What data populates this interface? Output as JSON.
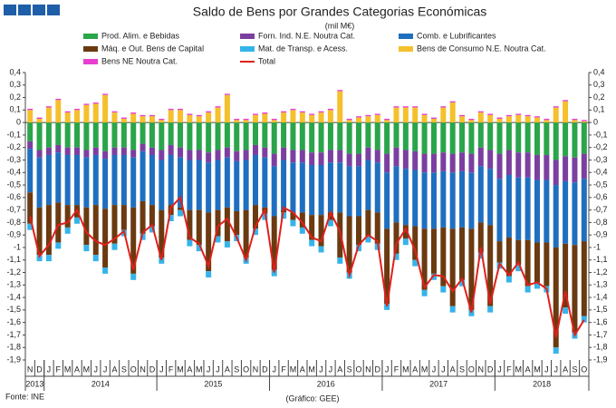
{
  "chart_data": {
    "type": "stacked-bar",
    "title": "Saldo de Bens por Grandes Categorias Económicas",
    "subtitle": "(mil M€)",
    "source": "Fonte: INE",
    "credit": "(Gráfico: GEE)",
    "categories": [
      "N",
      "D",
      "J",
      "F",
      "M",
      "A",
      "M",
      "J",
      "J",
      "A",
      "S",
      "O",
      "N",
      "D",
      "J",
      "F",
      "M",
      "A",
      "M",
      "J",
      "J",
      "A",
      "S",
      "O",
      "N",
      "D",
      "J",
      "F",
      "M",
      "A",
      "M",
      "J",
      "J",
      "A",
      "S",
      "O",
      "N",
      "D",
      "J",
      "F",
      "M",
      "A",
      "M",
      "J",
      "J",
      "A",
      "S",
      "O",
      "N",
      "D",
      "J",
      "F",
      "M",
      "A",
      "M",
      "J",
      "J",
      "A",
      "S",
      "O"
    ],
    "years": [
      "2013",
      "2014",
      "2015",
      "2016",
      "2017",
      "2018"
    ],
    "ylim": [
      -1.9,
      0.4
    ],
    "yticks": [
      {
        "value": 0.4,
        "label": "0,4"
      },
      {
        "value": 0.3,
        "label": "0,3"
      },
      {
        "value": 0.2,
        "label": "0,2"
      },
      {
        "value": 0.1,
        "label": "0,1"
      },
      0,
      {
        "value": -0.1,
        "label": "-0,1"
      },
      {
        "value": -0.2,
        "label": "-0,2"
      },
      {
        "value": -0.3,
        "label": "-0,3"
      },
      {
        "value": -0.4,
        "label": "-0,4"
      },
      {
        "value": -0.5,
        "label": "-0,5"
      },
      {
        "value": -0.6,
        "label": "-0,6"
      },
      {
        "value": -0.7,
        "label": "-0,7"
      },
      {
        "value": -0.8,
        "label": "-0,8"
      },
      {
        "value": -0.9,
        "label": "-0,9"
      },
      -1,
      {
        "value": -1.1,
        "label": "-1,1"
      },
      {
        "value": -1.2,
        "label": "-1,2"
      },
      {
        "value": -1.3,
        "label": "-1,3"
      },
      {
        "value": -1.4,
        "label": "-1,4"
      },
      {
        "value": -1.5,
        "label": "-1,5"
      },
      {
        "value": -1.6,
        "label": "-1,6"
      },
      {
        "value": -1.7,
        "label": "-1,7"
      },
      {
        "value": -1.8,
        "label": "-1,8"
      },
      {
        "value": -1.9,
        "label": "-1,9"
      }
    ],
    "grid": false,
    "series": [
      {
        "name": "Prod. Alim. e Bebidas",
        "color": "#2aa54a",
        "values": [
          -0.15,
          -0.22,
          -0.2,
          -0.18,
          -0.2,
          -0.2,
          -0.22,
          -0.2,
          -0.23,
          -0.2,
          -0.2,
          -0.22,
          -0.17,
          -0.2,
          -0.22,
          -0.18,
          -0.2,
          -0.22,
          -0.22,
          -0.24,
          -0.22,
          -0.2,
          -0.23,
          -0.22,
          -0.18,
          -0.2,
          -0.25,
          -0.2,
          -0.22,
          -0.22,
          -0.24,
          -0.24,
          -0.22,
          -0.22,
          -0.25,
          -0.25,
          -0.2,
          -0.22,
          -0.25,
          -0.2,
          -0.22,
          -0.23,
          -0.25,
          -0.25,
          -0.24,
          -0.25,
          -0.24,
          -0.25,
          -0.2,
          -0.22,
          -0.25,
          -0.22,
          -0.24,
          -0.24,
          -0.26,
          -0.26,
          -0.3,
          -0.27,
          -0.28,
          -0.25
        ]
      },
      {
        "name": "Forn. Ind. N.E. Noutra Cat.",
        "color": "#7b3fa0",
        "values": [
          -0.06,
          -0.06,
          -0.06,
          -0.06,
          -0.06,
          -0.06,
          -0.06,
          -0.06,
          -0.06,
          -0.06,
          -0.06,
          -0.06,
          -0.06,
          -0.06,
          -0.08,
          -0.08,
          -0.08,
          -0.08,
          -0.08,
          -0.08,
          -0.08,
          -0.08,
          -0.08,
          -0.08,
          -0.08,
          -0.08,
          -0.1,
          -0.1,
          -0.1,
          -0.1,
          -0.1,
          -0.1,
          -0.1,
          -0.1,
          -0.1,
          -0.1,
          -0.1,
          -0.1,
          -0.15,
          -0.15,
          -0.15,
          -0.15,
          -0.15,
          -0.15,
          -0.15,
          -0.15,
          -0.15,
          -0.15,
          -0.15,
          -0.15,
          -0.2,
          -0.2,
          -0.2,
          -0.2,
          -0.2,
          -0.2,
          -0.2,
          -0.2,
          -0.2,
          -0.2
        ]
      },
      {
        "name": "Comb. e Lubrificantes",
        "color": "#1f6fc0",
        "values": [
          -0.35,
          -0.4,
          -0.4,
          -0.4,
          -0.4,
          -0.4,
          -0.4,
          -0.4,
          -0.4,
          -0.4,
          -0.4,
          -0.4,
          -0.4,
          -0.4,
          -0.4,
          -0.4,
          -0.4,
          -0.4,
          -0.4,
          -0.4,
          -0.4,
          -0.4,
          -0.4,
          -0.4,
          -0.4,
          -0.4,
          -0.4,
          -0.4,
          -0.4,
          -0.4,
          -0.4,
          -0.4,
          -0.4,
          -0.4,
          -0.4,
          -0.4,
          -0.4,
          -0.4,
          -0.45,
          -0.45,
          -0.45,
          -0.45,
          -0.45,
          -0.45,
          -0.45,
          -0.45,
          -0.45,
          -0.45,
          -0.45,
          -0.45,
          -0.5,
          -0.5,
          -0.5,
          -0.5,
          -0.5,
          -0.5,
          -0.5,
          -0.5,
          -0.5,
          -0.5
        ]
      },
      {
        "name": "Máq. e Out. Bens de Capital",
        "color": "#6b3a10",
        "values": [
          -0.25,
          -0.38,
          -0.4,
          -0.32,
          -0.18,
          -0.1,
          -0.3,
          -0.4,
          -0.47,
          -0.31,
          -0.2,
          -0.53,
          -0.26,
          -0.17,
          -0.38,
          -0.08,
          -0.02,
          -0.24,
          -0.28,
          -0.47,
          -0.21,
          -0.27,
          -0.19,
          -0.38,
          -0.19,
          -0.05,
          -0.43,
          -0.02,
          -0.06,
          -0.12,
          -0.2,
          -0.25,
          -0.06,
          -0.36,
          -0.45,
          -0.23,
          -0.21,
          -0.25,
          -0.6,
          -0.25,
          -0.11,
          -0.27,
          -0.49,
          -0.36,
          -0.47,
          -0.62,
          -0.42,
          -0.65,
          -0.24,
          -0.65,
          -0.17,
          -0.31,
          -0.2,
          -0.37,
          -0.32,
          -0.35,
          -0.8,
          -0.51,
          -0.7,
          -0.6
        ]
      },
      {
        "name": "Mat. de Transp. e Acess.",
        "color": "#35b4ea",
        "values": [
          -0.05,
          -0.05,
          -0.05,
          -0.05,
          -0.05,
          -0.05,
          -0.05,
          -0.05,
          -0.05,
          -0.05,
          -0.05,
          -0.05,
          -0.05,
          -0.05,
          -0.05,
          -0.05,
          -0.05,
          -0.05,
          -0.05,
          -0.05,
          -0.05,
          -0.05,
          -0.05,
          -0.05,
          -0.05,
          -0.05,
          -0.05,
          -0.05,
          -0.05,
          -0.05,
          -0.05,
          -0.05,
          -0.05,
          -0.05,
          -0.05,
          -0.05,
          -0.05,
          -0.05,
          -0.05,
          -0.05,
          -0.05,
          -0.05,
          -0.05,
          -0.05,
          -0.05,
          -0.05,
          -0.05,
          -0.05,
          -0.05,
          -0.05,
          -0.05,
          -0.05,
          -0.05,
          -0.05,
          -0.05,
          -0.05,
          -0.05,
          -0.05,
          -0.05,
          -0.05
        ]
      },
      {
        "name": "Bens de Consumo N.E. Noutra Cat.",
        "color": "#f5c02c",
        "values": [
          0.1,
          0.03,
          0.12,
          0.18,
          0.08,
          0.1,
          0.14,
          0.15,
          0.22,
          0.08,
          0.03,
          0.07,
          0.05,
          0.05,
          0.02,
          0.1,
          0.1,
          0.06,
          0.05,
          0.08,
          0.12,
          0.22,
          0.02,
          0.02,
          0.06,
          0.07,
          0.02,
          0.08,
          0.1,
          0.08,
          0.06,
          0.08,
          0.1,
          0.25,
          0.02,
          0.04,
          0.05,
          0.06,
          0.02,
          0.12,
          0.12,
          0.12,
          0.06,
          0.03,
          0.12,
          0.16,
          0.05,
          0.02,
          0.08,
          0.06,
          0.03,
          0.05,
          0.06,
          0.05,
          0.04,
          0.02,
          0.12,
          0.17,
          0.02,
          0.01
        ]
      },
      {
        "name": "Bens NE Noutra Cat.",
        "color": "#e83fd0",
        "values": [
          0.01,
          0.01,
          0.01,
          0.01,
          0.01,
          0.01,
          0.01,
          0.01,
          0.01,
          0.01,
          0.01,
          0.01,
          0.01,
          0.01,
          0.01,
          0.01,
          0.01,
          0.01,
          0.01,
          0.01,
          0.01,
          0.01,
          0.01,
          0.01,
          0.01,
          0.01,
          0.01,
          0.01,
          0.01,
          0.01,
          0.01,
          0.01,
          0.01,
          0.01,
          0.01,
          0.01,
          0.01,
          0.01,
          0.01,
          0.01,
          0.01,
          0.01,
          0.01,
          0.01,
          0.01,
          0.01,
          0.01,
          0.01,
          0.01,
          0.01,
          0.01,
          0.01,
          0.01,
          0.01,
          0.01,
          0.01,
          0.01,
          0.01,
          0.01,
          0.01
        ]
      },
      {
        "name": "Total",
        "type": "line",
        "color": "#e0201b",
        "values": [
          -0.75,
          -1.07,
          -0.98,
          -0.82,
          -0.8,
          -0.7,
          -0.88,
          -0.95,
          -0.98,
          -0.93,
          -0.87,
          -1.18,
          -0.88,
          -0.82,
          -1.1,
          -0.68,
          -0.6,
          -0.92,
          -0.97,
          -1.15,
          -0.83,
          -0.77,
          -0.92,
          -1.1,
          -0.83,
          -0.7,
          -1.2,
          -0.68,
          -0.72,
          -0.8,
          -0.92,
          -0.95,
          -0.72,
          -0.87,
          -1.22,
          -0.98,
          -0.9,
          -0.95,
          -1.47,
          -0.97,
          -0.85,
          -1.02,
          -1.32,
          -1.22,
          -1.23,
          -1.35,
          -1.25,
          -1.52,
          -1.0,
          -1.45,
          -1.13,
          -1.22,
          -1.12,
          -1.3,
          -1.28,
          -1.33,
          -1.72,
          -1.35,
          -1.7,
          -1.58
        ]
      }
    ]
  }
}
